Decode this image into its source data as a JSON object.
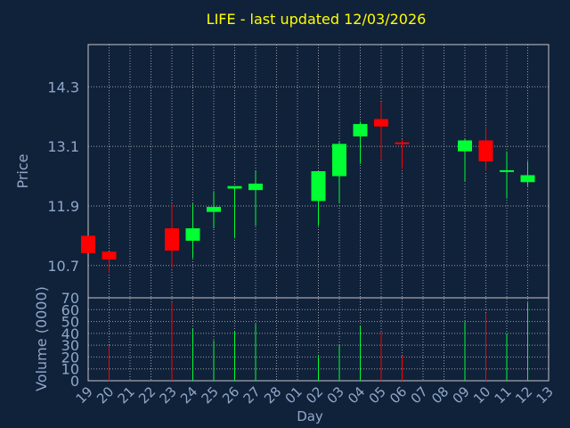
{
  "title": "LIFE - last updated 12/03/2026",
  "colors": {
    "background": "#10213a",
    "title": "#ffff00",
    "axis_text": "#8fa8c8",
    "up": "#00ff33",
    "down": "#ff0000",
    "grid": "#c8c8c8"
  },
  "chart_data": [
    {
      "type": "candlestick",
      "ylabel": "Price",
      "yticks": [
        10.7,
        11.9,
        13.1,
        14.3
      ],
      "ylim": [
        10.05,
        15.15
      ],
      "grid": true,
      "candles": [
        {
          "day": "19",
          "open": 11.3,
          "high": 11.3,
          "low": 10.95,
          "close": 10.95
        },
        {
          "day": "20",
          "open": 10.98,
          "high": 10.98,
          "low": 10.55,
          "close": 10.82
        },
        {
          "day": "23",
          "open": 11.45,
          "high": 11.95,
          "low": 10.65,
          "close": 11.0
        },
        {
          "day": "24",
          "open": 11.2,
          "high": 11.95,
          "low": 10.85,
          "close": 11.45
        },
        {
          "day": "25",
          "open": 11.78,
          "high": 12.2,
          "low": 11.45,
          "close": 11.88
        },
        {
          "day": "26",
          "open": 12.25,
          "high": 12.3,
          "low": 11.25,
          "close": 12.3
        },
        {
          "day": "27",
          "open": 12.22,
          "high": 12.6,
          "low": 11.5,
          "close": 12.35
        },
        {
          "day": "02",
          "open": 12.0,
          "high": 12.6,
          "low": 11.5,
          "close": 12.6
        },
        {
          "day": "03",
          "open": 12.5,
          "high": 13.2,
          "low": 11.95,
          "close": 13.15
        },
        {
          "day": "04",
          "open": 13.3,
          "high": 13.6,
          "low": 12.75,
          "close": 13.55
        },
        {
          "day": "05",
          "open": 13.65,
          "high": 14.0,
          "low": 12.85,
          "close": 13.5
        },
        {
          "day": "06",
          "open": 13.18,
          "high": 13.25,
          "low": 12.65,
          "close": 13.15
        },
        {
          "day": "09",
          "open": 13.0,
          "high": 13.25,
          "low": 12.4,
          "close": 13.22
        },
        {
          "day": "10",
          "open": 13.22,
          "high": 13.5,
          "low": 12.6,
          "close": 12.8
        },
        {
          "day": "11",
          "open": 12.6,
          "high": 13.0,
          "low": 12.05,
          "close": 12.62
        },
        {
          "day": "12",
          "open": 12.38,
          "high": 12.8,
          "low": 12.3,
          "close": 12.52
        }
      ]
    },
    {
      "type": "bar",
      "ylabel": "Volume (0000)",
      "yticks": [
        0,
        10,
        20,
        30,
        40,
        50,
        60,
        70
      ],
      "ylim": [
        0,
        70
      ],
      "volumes": [
        {
          "day": "20",
          "value": 30,
          "direction": "down"
        },
        {
          "day": "23",
          "value": 66,
          "direction": "down"
        },
        {
          "day": "24",
          "value": 44,
          "direction": "up"
        },
        {
          "day": "25",
          "value": 34,
          "direction": "up"
        },
        {
          "day": "26",
          "value": 42,
          "direction": "up"
        },
        {
          "day": "27",
          "value": 48,
          "direction": "up"
        },
        {
          "day": "02",
          "value": 21,
          "direction": "up"
        },
        {
          "day": "03",
          "value": 30,
          "direction": "up"
        },
        {
          "day": "04",
          "value": 46,
          "direction": "up"
        },
        {
          "day": "05",
          "value": 41,
          "direction": "down"
        },
        {
          "day": "06",
          "value": 21,
          "direction": "down"
        },
        {
          "day": "09",
          "value": 50,
          "direction": "up"
        },
        {
          "day": "10",
          "value": 57,
          "direction": "down"
        },
        {
          "day": "11",
          "value": 40,
          "direction": "up"
        },
        {
          "day": "12",
          "value": 66,
          "direction": "up"
        }
      ]
    }
  ],
  "x_axis": {
    "label": "Day",
    "ticks": [
      "19",
      "20",
      "21",
      "22",
      "23",
      "24",
      "25",
      "26",
      "27",
      "28",
      "01",
      "02",
      "03",
      "04",
      "05",
      "06",
      "07",
      "08",
      "09",
      "10",
      "11",
      "12",
      "13"
    ]
  }
}
